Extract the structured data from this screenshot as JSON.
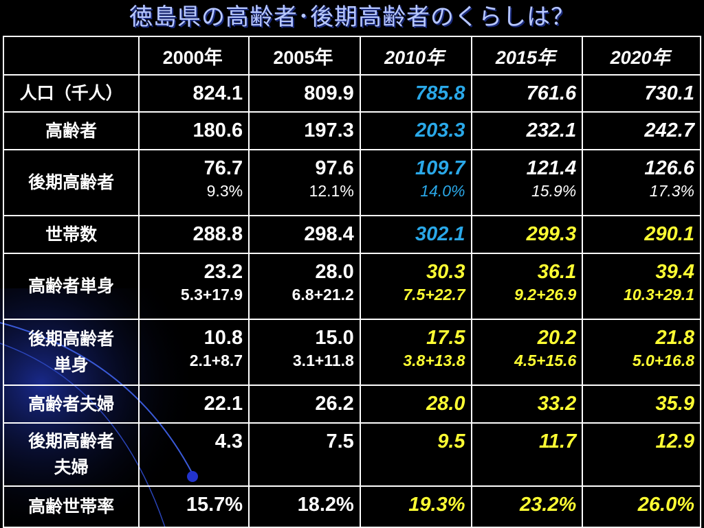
{
  "title": "徳島県の高齢者･後期高齢者のくらしは？",
  "columns": [
    "2000年",
    "2005年",
    "2010年",
    "2015年",
    "2020年"
  ],
  "rows": [
    {
      "label": "人口（千人）",
      "cells": [
        {
          "v": "824.1"
        },
        {
          "v": "809.9"
        },
        {
          "v": "785.8"
        },
        {
          "v": "761.6"
        },
        {
          "v": "730.1"
        }
      ]
    },
    {
      "label": "高齢者",
      "cells": [
        {
          "v": "180.6"
        },
        {
          "v": "197.3"
        },
        {
          "v": "203.3"
        },
        {
          "v": "232.1"
        },
        {
          "v": "242.7"
        }
      ]
    },
    {
      "label": "後期高齢者",
      "cells": [
        {
          "v": "76.7",
          "s": "9.3%"
        },
        {
          "v": "97.6",
          "s": "12.1%"
        },
        {
          "v": "109.7",
          "s": "14.0%"
        },
        {
          "v": "121.4",
          "s": "15.9%"
        },
        {
          "v": "126.6",
          "s": "17.3%"
        }
      ]
    },
    {
      "label": "世帯数",
      "cells": [
        {
          "v": "288.8"
        },
        {
          "v": "298.4"
        },
        {
          "v": "302.1"
        },
        {
          "v": "299.3"
        },
        {
          "v": "290.1"
        }
      ]
    },
    {
      "label": "高齢者単身",
      "cells": [
        {
          "v": "23.2",
          "s": "5.3+17.9"
        },
        {
          "v": "28.0",
          "s": "6.8+21.2"
        },
        {
          "v": "30.3",
          "s": "7.5+22.7"
        },
        {
          "v": "36.1",
          "s": "9.2+26.9"
        },
        {
          "v": "39.4",
          "s": "10.3+29.1"
        }
      ]
    },
    {
      "label_l1": "後期高齢者",
      "label_l2": "単身",
      "cells": [
        {
          "v": "10.8",
          "s": "2.1+8.7"
        },
        {
          "v": "15.0",
          "s": "3.1+11.8"
        },
        {
          "v": "17.5",
          "s": "3.8+13.8"
        },
        {
          "v": "20.2",
          "s": "4.5+15.6"
        },
        {
          "v": "21.8",
          "s": "5.0+16.8"
        }
      ]
    },
    {
      "label": "高齢者夫婦",
      "cells": [
        {
          "v": "22.1"
        },
        {
          "v": "26.2"
        },
        {
          "v": "28.0"
        },
        {
          "v": "33.2"
        },
        {
          "v": "35.9"
        }
      ]
    },
    {
      "label_l1": "後期高齢者",
      "label_l2": "夫婦",
      "cells": [
        {
          "v": "4.3"
        },
        {
          "v": "7.5"
        },
        {
          "v": "9.5"
        },
        {
          "v": "11.7"
        },
        {
          "v": "12.9"
        }
      ]
    },
    {
      "label": "高齢世帯率",
      "cells": [
        {
          "v": "15.7%"
        },
        {
          "v": "18.2%"
        },
        {
          "v": "19.3%"
        },
        {
          "v": "23.2%"
        },
        {
          "v": "26.0%"
        }
      ]
    }
  ],
  "colors": {
    "background": "#000000",
    "title": "#b8c8ff",
    "text": "#ffffff",
    "highlight_blue": "#2aa8e8",
    "highlight_yellow": "#ffff33"
  }
}
